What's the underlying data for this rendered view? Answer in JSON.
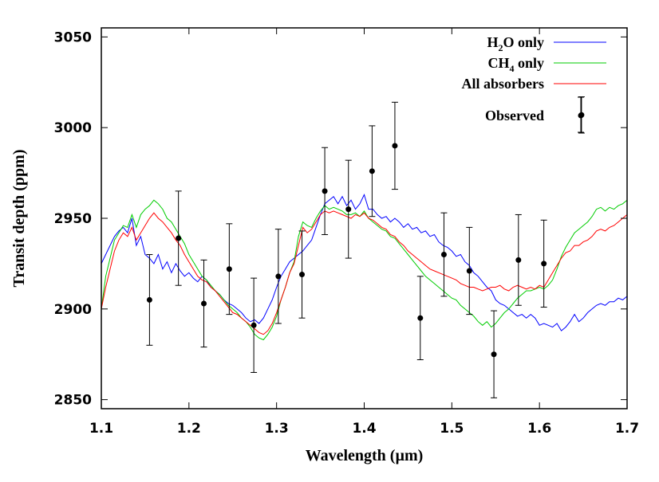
{
  "chart_data": {
    "type": "line",
    "title": "",
    "xlabel": "Wavelength (µm)",
    "ylabel": "Transit depth (ppm)",
    "xlim": [
      1.1,
      1.7
    ],
    "ylim": [
      2845,
      3055
    ],
    "xticks": [
      1.1,
      1.2,
      1.3,
      1.4,
      1.5,
      1.6,
      1.7
    ],
    "xtick_labels": [
      "1.1",
      "1.2",
      "1.3",
      "1.4",
      "1.5",
      "1.6",
      "1.7"
    ],
    "yticks": [
      2850,
      2900,
      2950,
      3000,
      3050
    ],
    "ytick_labels": [
      "2850",
      "2900",
      "2950",
      "3000",
      "3050"
    ],
    "grid": false,
    "legend_position": "top-right",
    "legend": [
      {
        "label": "H2O only",
        "main": "H",
        "sub": "2",
        "tail": "O only",
        "color": "#0000ff"
      },
      {
        "label": "CH4 only",
        "main": "CH",
        "sub": "4",
        "tail": " only",
        "color": "#00cc00"
      },
      {
        "label": "All absorbers",
        "main": "All absorbers",
        "sub": "",
        "tail": "",
        "color": "#ff0000"
      },
      {
        "label": "Observed",
        "main": "Observed",
        "sub": "",
        "tail": "",
        "color": "#000000"
      }
    ],
    "series": [
      {
        "name": "H2O only",
        "color": "#0000ff",
        "x": [
          1.1,
          1.105,
          1.11,
          1.115,
          1.12,
          1.125,
          1.13,
          1.135,
          1.14,
          1.145,
          1.15,
          1.155,
          1.16,
          1.165,
          1.17,
          1.175,
          1.18,
          1.185,
          1.19,
          1.195,
          1.2,
          1.205,
          1.21,
          1.215,
          1.22,
          1.225,
          1.23,
          1.235,
          1.24,
          1.245,
          1.25,
          1.255,
          1.26,
          1.265,
          1.27,
          1.275,
          1.28,
          1.285,
          1.29,
          1.295,
          1.3,
          1.305,
          1.31,
          1.315,
          1.32,
          1.325,
          1.33,
          1.335,
          1.34,
          1.345,
          1.35,
          1.355,
          1.36,
          1.365,
          1.37,
          1.375,
          1.38,
          1.385,
          1.39,
          1.395,
          1.4,
          1.405,
          1.41,
          1.415,
          1.42,
          1.425,
          1.43,
          1.435,
          1.44,
          1.445,
          1.45,
          1.455,
          1.46,
          1.465,
          1.47,
          1.475,
          1.48,
          1.485,
          1.49,
          1.495,
          1.5,
          1.505,
          1.51,
          1.515,
          1.52,
          1.525,
          1.53,
          1.535,
          1.54,
          1.545,
          1.55,
          1.555,
          1.56,
          1.565,
          1.57,
          1.575,
          1.58,
          1.585,
          1.59,
          1.595,
          1.6,
          1.605,
          1.61,
          1.615,
          1.62,
          1.625,
          1.63,
          1.635,
          1.64,
          1.645,
          1.65,
          1.655,
          1.66,
          1.665,
          1.67,
          1.675,
          1.68,
          1.685,
          1.69,
          1.695,
          1.7
        ],
        "y": [
          2925,
          2930,
          2935,
          2940,
          2943,
          2945,
          2942,
          2950,
          2935,
          2940,
          2930,
          2928,
          2925,
          2930,
          2922,
          2926,
          2920,
          2925,
          2921,
          2918,
          2920,
          2917,
          2915,
          2918,
          2916,
          2912,
          2910,
          2908,
          2905,
          2903,
          2902,
          2900,
          2898,
          2895,
          2893,
          2894,
          2892,
          2895,
          2900,
          2905,
          2912,
          2918,
          2922,
          2926,
          2928,
          2930,
          2932,
          2935,
          2938,
          2945,
          2952,
          2958,
          2960,
          2962,
          2958,
          2962,
          2957,
          2960,
          2955,
          2958,
          2963,
          2955,
          2955,
          2952,
          2950,
          2951,
          2948,
          2950,
          2948,
          2945,
          2947,
          2944,
          2945,
          2942,
          2943,
          2940,
          2941,
          2937,
          2935,
          2934,
          2932,
          2929,
          2930,
          2926,
          2924,
          2920,
          2918,
          2915,
          2912,
          2910,
          2905,
          2903,
          2902,
          2900,
          2898,
          2896,
          2897,
          2895,
          2897,
          2895,
          2891,
          2892,
          2891,
          2890,
          2892,
          2888,
          2890,
          2893,
          2897,
          2893,
          2895,
          2898,
          2900,
          2902,
          2903,
          2902,
          2904,
          2904,
          2906,
          2905,
          2907
        ]
      },
      {
        "name": "CH4 only",
        "color": "#00cc00",
        "x": [
          1.1,
          1.105,
          1.11,
          1.115,
          1.12,
          1.125,
          1.13,
          1.135,
          1.14,
          1.145,
          1.15,
          1.155,
          1.16,
          1.165,
          1.17,
          1.175,
          1.18,
          1.185,
          1.19,
          1.195,
          1.2,
          1.205,
          1.21,
          1.215,
          1.22,
          1.225,
          1.23,
          1.235,
          1.24,
          1.245,
          1.25,
          1.255,
          1.26,
          1.265,
          1.27,
          1.275,
          1.28,
          1.285,
          1.29,
          1.295,
          1.3,
          1.305,
          1.31,
          1.315,
          1.32,
          1.325,
          1.33,
          1.335,
          1.34,
          1.345,
          1.35,
          1.355,
          1.36,
          1.365,
          1.37,
          1.375,
          1.38,
          1.385,
          1.39,
          1.395,
          1.4,
          1.405,
          1.41,
          1.415,
          1.42,
          1.425,
          1.43,
          1.435,
          1.44,
          1.445,
          1.45,
          1.455,
          1.46,
          1.465,
          1.47,
          1.475,
          1.48,
          1.485,
          1.49,
          1.495,
          1.5,
          1.505,
          1.51,
          1.515,
          1.52,
          1.525,
          1.53,
          1.535,
          1.54,
          1.545,
          1.55,
          1.555,
          1.56,
          1.565,
          1.57,
          1.575,
          1.58,
          1.585,
          1.59,
          1.595,
          1.6,
          1.605,
          1.61,
          1.615,
          1.62,
          1.625,
          1.63,
          1.635,
          1.64,
          1.645,
          1.65,
          1.655,
          1.66,
          1.665,
          1.67,
          1.675,
          1.68,
          1.685,
          1.69,
          1.695,
          1.7
        ],
        "y": [
          2900,
          2918,
          2928,
          2938,
          2942,
          2946,
          2945,
          2952,
          2945,
          2952,
          2955,
          2957,
          2960,
          2958,
          2955,
          2950,
          2948,
          2944,
          2940,
          2936,
          2930,
          2926,
          2922,
          2918,
          2916,
          2913,
          2910,
          2908,
          2905,
          2902,
          2900,
          2898,
          2895,
          2893,
          2890,
          2886,
          2884,
          2883,
          2886,
          2890,
          2896,
          2905,
          2912,
          2920,
          2926,
          2940,
          2948,
          2946,
          2945,
          2950,
          2954,
          2957,
          2955,
          2956,
          2955,
          2954,
          2952,
          2952,
          2953,
          2951,
          2954,
          2950,
          2948,
          2946,
          2944,
          2943,
          2940,
          2939,
          2936,
          2933,
          2930,
          2927,
          2924,
          2921,
          2918,
          2916,
          2914,
          2912,
          2910,
          2908,
          2906,
          2905,
          2902,
          2900,
          2898,
          2896,
          2893,
          2891,
          2893,
          2890,
          2892,
          2895,
          2898,
          2900,
          2903,
          2906,
          2908,
          2910,
          2910,
          2911,
          2912,
          2911,
          2913,
          2916,
          2922,
          2929,
          2934,
          2938,
          2942,
          2944,
          2946,
          2948,
          2951,
          2955,
          2956,
          2954,
          2956,
          2955,
          2957,
          2958,
          2960
        ]
      },
      {
        "name": "All absorbers",
        "color": "#ff0000",
        "x": [
          1.1,
          1.105,
          1.11,
          1.115,
          1.12,
          1.125,
          1.13,
          1.135,
          1.14,
          1.145,
          1.15,
          1.155,
          1.16,
          1.165,
          1.17,
          1.175,
          1.18,
          1.185,
          1.19,
          1.195,
          1.2,
          1.205,
          1.21,
          1.215,
          1.22,
          1.225,
          1.23,
          1.235,
          1.24,
          1.245,
          1.25,
          1.255,
          1.26,
          1.265,
          1.27,
          1.275,
          1.28,
          1.285,
          1.29,
          1.295,
          1.3,
          1.305,
          1.31,
          1.315,
          1.32,
          1.325,
          1.33,
          1.335,
          1.34,
          1.345,
          1.35,
          1.355,
          1.36,
          1.365,
          1.37,
          1.375,
          1.38,
          1.385,
          1.39,
          1.395,
          1.4,
          1.405,
          1.41,
          1.415,
          1.42,
          1.425,
          1.43,
          1.435,
          1.44,
          1.445,
          1.45,
          1.455,
          1.46,
          1.465,
          1.47,
          1.475,
          1.48,
          1.485,
          1.49,
          1.495,
          1.5,
          1.505,
          1.51,
          1.515,
          1.52,
          1.525,
          1.53,
          1.535,
          1.54,
          1.545,
          1.55,
          1.555,
          1.56,
          1.565,
          1.57,
          1.575,
          1.58,
          1.585,
          1.59,
          1.595,
          1.6,
          1.605,
          1.61,
          1.615,
          1.62,
          1.625,
          1.63,
          1.635,
          1.64,
          1.645,
          1.65,
          1.655,
          1.66,
          1.665,
          1.67,
          1.675,
          1.68,
          1.685,
          1.69,
          1.695,
          1.7
        ],
        "y": [
          2900,
          2912,
          2922,
          2932,
          2938,
          2942,
          2940,
          2945,
          2938,
          2942,
          2946,
          2950,
          2953,
          2950,
          2948,
          2945,
          2942,
          2938,
          2935,
          2930,
          2926,
          2922,
          2918,
          2916,
          2915,
          2912,
          2910,
          2907,
          2904,
          2901,
          2898,
          2897,
          2895,
          2893,
          2891,
          2889,
          2887,
          2886,
          2888,
          2892,
          2898,
          2905,
          2912,
          2920,
          2925,
          2935,
          2945,
          2942,
          2944,
          2948,
          2952,
          2954,
          2953,
          2954,
          2953,
          2952,
          2951,
          2950,
          2952,
          2951,
          2953,
          2950,
          2949,
          2947,
          2945,
          2944,
          2941,
          2940,
          2937,
          2935,
          2932,
          2930,
          2928,
          2926,
          2924,
          2922,
          2921,
          2920,
          2919,
          2918,
          2917,
          2916,
          2914,
          2913,
          2912,
          2912,
          2911,
          2910,
          2911,
          2912,
          2912,
          2913,
          2911,
          2910,
          2912,
          2913,
          2912,
          2911,
          2912,
          2911,
          2913,
          2912,
          2916,
          2920,
          2924,
          2928,
          2931,
          2932,
          2935,
          2935,
          2937,
          2938,
          2940,
          2943,
          2944,
          2943,
          2945,
          2946,
          2948,
          2950,
          2952
        ]
      },
      {
        "name": "Observed",
        "color": "#000000",
        "type": "errorbar",
        "x": [
          1.155,
          1.188,
          1.217,
          1.246,
          1.274,
          1.302,
          1.329,
          1.355,
          1.382,
          1.409,
          1.435,
          1.464,
          1.491,
          1.52,
          1.548,
          1.576,
          1.605,
          1.648
        ],
        "y": [
          2905,
          2939,
          2903,
          2922,
          2891,
          2918,
          2919,
          2965,
          2955,
          2976,
          2990,
          2895,
          2930,
          2921,
          2875,
          2927,
          2925,
          3007
        ],
        "yerr": [
          25,
          26,
          24,
          25,
          26,
          26,
          24,
          24,
          27,
          25,
          24,
          23,
          23,
          24,
          24,
          25,
          24,
          10
        ]
      }
    ]
  }
}
